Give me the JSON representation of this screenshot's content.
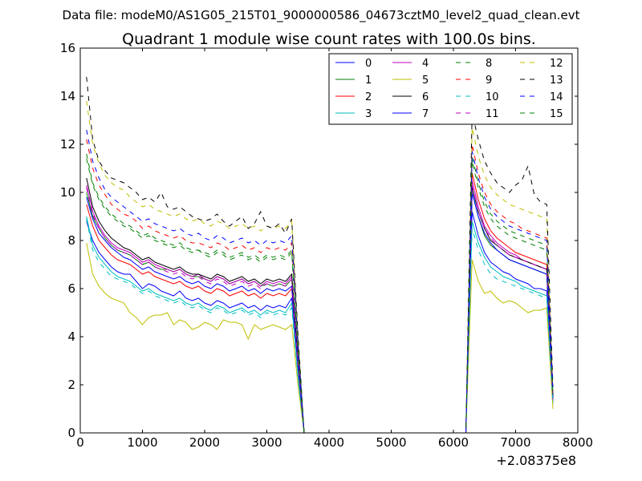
{
  "header": {
    "data_file": "Data file: modeM0/AS1G05_215T01_9000000586_04673cztM0_level2_quad_clean.evt"
  },
  "chart_data": {
    "type": "line",
    "title": "Quadrant 1 module wise count rates with 100.0s bins.",
    "xlabel": "",
    "ylabel": "",
    "x_offset_label": "+2.08375e8",
    "xlim": [
      0,
      8000
    ],
    "ylim": [
      0,
      16
    ],
    "x_ticks": [
      0,
      1000,
      2000,
      3000,
      4000,
      5000,
      6000,
      7000,
      8000
    ],
    "y_ticks": [
      0,
      2,
      4,
      6,
      8,
      10,
      12,
      14,
      16
    ],
    "grid": false,
    "legend_position": "top-right",
    "x": [
      100,
      200,
      300,
      400,
      500,
      600,
      700,
      800,
      900,
      1000,
      1100,
      1200,
      1300,
      1400,
      1500,
      1600,
      1700,
      1800,
      1900,
      2000,
      2100,
      2200,
      2300,
      2400,
      2500,
      2600,
      2700,
      2800,
      2900,
      3000,
      3100,
      3200,
      3300,
      3400,
      3500,
      3600,
      6200,
      6300,
      6400,
      6500,
      6600,
      6700,
      6800,
      6900,
      7000,
      7100,
      7200,
      7300,
      7400,
      7500,
      7600
    ],
    "series": [
      {
        "name": "0",
        "color": "#0000ff",
        "dashed": false,
        "values": [
          8.8,
          8.0,
          7.5,
          7.2,
          6.9,
          6.7,
          6.6,
          6.6,
          6.3,
          6.0,
          6.2,
          6.1,
          5.9,
          5.8,
          5.7,
          5.9,
          5.6,
          5.5,
          5.6,
          5.4,
          5.3,
          5.5,
          5.4,
          5.2,
          5.3,
          5.4,
          5.2,
          5.3,
          5.1,
          5.3,
          5.2,
          5.3,
          5.2,
          5.6,
          2.5,
          0,
          0,
          9.2,
          8.2,
          7.5,
          7.1,
          6.9,
          6.7,
          6.6,
          6.4,
          6.3,
          6.2,
          6.0,
          6.0,
          5.9,
          1.3
        ]
      },
      {
        "name": "1",
        "color": "#008000",
        "dashed": false,
        "values": [
          10.0,
          9.0,
          8.5,
          8.1,
          7.8,
          7.6,
          7.5,
          7.4,
          7.2,
          7.0,
          7.1,
          6.9,
          6.8,
          6.8,
          6.7,
          6.8,
          6.6,
          6.5,
          6.5,
          6.4,
          6.3,
          6.5,
          6.4,
          6.2,
          6.3,
          6.4,
          6.2,
          6.3,
          6.1,
          6.2,
          6.1,
          6.2,
          6.1,
          6.4,
          3.0,
          0,
          0,
          10.0,
          9.0,
          8.2,
          7.8,
          7.6,
          7.4,
          7.2,
          7.1,
          7.0,
          6.9,
          6.8,
          6.7,
          6.6,
          1.4
        ]
      },
      {
        "name": "2",
        "color": "#ff0000",
        "dashed": false,
        "values": [
          9.5,
          8.6,
          8.0,
          7.7,
          7.4,
          7.2,
          7.1,
          7.0,
          6.8,
          6.6,
          6.7,
          6.5,
          6.4,
          6.3,
          6.2,
          6.3,
          6.1,
          6.0,
          6.1,
          5.9,
          5.8,
          6.0,
          5.9,
          5.7,
          5.8,
          5.9,
          5.7,
          5.8,
          5.6,
          5.8,
          5.7,
          5.8,
          5.7,
          6.0,
          2.8,
          0,
          0,
          10.8,
          9.7,
          8.9,
          8.4,
          8.1,
          7.9,
          7.7,
          7.5,
          7.4,
          7.3,
          7.2,
          7.1,
          7.0,
          1.4
        ]
      },
      {
        "name": "3",
        "color": "#00bfbf",
        "dashed": false,
        "values": [
          9.0,
          7.8,
          7.3,
          7.0,
          6.7,
          6.5,
          6.4,
          6.3,
          6.1,
          5.9,
          6.0,
          5.8,
          5.7,
          5.6,
          5.5,
          5.6,
          5.4,
          5.3,
          5.4,
          5.2,
          5.1,
          5.3,
          5.2,
          5.0,
          5.1,
          5.2,
          5.0,
          5.1,
          4.9,
          5.1,
          5.0,
          5.1,
          5.0,
          5.4,
          2.4,
          0,
          0,
          8.8,
          7.9,
          7.3,
          6.9,
          6.7,
          6.5,
          6.4,
          6.3,
          6.1,
          6.0,
          5.9,
          5.8,
          5.7,
          1.2
        ]
      },
      {
        "name": "4",
        "color": "#bf00bf",
        "dashed": false,
        "values": [
          10.3,
          9.2,
          8.6,
          8.2,
          7.9,
          7.7,
          7.6,
          7.5,
          7.3,
          7.1,
          7.2,
          7.0,
          6.9,
          6.8,
          6.7,
          6.8,
          6.6,
          6.5,
          6.6,
          6.4,
          6.3,
          6.5,
          6.4,
          6.2,
          6.3,
          6.4,
          6.2,
          6.3,
          6.1,
          6.3,
          6.2,
          6.3,
          6.2,
          6.5,
          3.0,
          0,
          0,
          10.5,
          9.4,
          8.6,
          8.2,
          7.9,
          7.7,
          7.5,
          7.4,
          7.2,
          7.1,
          7.0,
          6.9,
          6.8,
          1.4
        ]
      },
      {
        "name": "5",
        "color": "#bfbf00",
        "dashed": false,
        "values": [
          7.9,
          6.6,
          6.1,
          5.8,
          5.6,
          5.5,
          5.4,
          5.0,
          4.8,
          4.5,
          4.8,
          4.9,
          4.9,
          5.0,
          4.5,
          4.7,
          4.6,
          4.3,
          4.4,
          4.6,
          4.5,
          4.3,
          4.7,
          4.6,
          4.6,
          4.5,
          3.9,
          4.5,
          4.3,
          4.4,
          4.5,
          4.4,
          4.3,
          4.5,
          2.0,
          0,
          0,
          7.2,
          6.3,
          5.8,
          5.9,
          5.6,
          5.4,
          5.5,
          5.4,
          5.2,
          5.0,
          5.1,
          5.1,
          5.2,
          1.0
        ]
      },
      {
        "name": "6",
        "color": "#000000",
        "dashed": false,
        "values": [
          10.6,
          9.4,
          8.8,
          8.4,
          8.1,
          7.9,
          7.7,
          7.6,
          7.4,
          7.2,
          7.3,
          7.1,
          7.0,
          6.9,
          6.8,
          6.9,
          6.7,
          6.6,
          6.6,
          6.5,
          6.4,
          6.6,
          6.5,
          6.3,
          6.4,
          6.5,
          6.3,
          6.4,
          6.2,
          6.4,
          6.3,
          6.4,
          6.3,
          6.6,
          3.0,
          0,
          0,
          10.2,
          9.2,
          8.5,
          8.0,
          7.8,
          7.6,
          7.4,
          7.3,
          7.2,
          7.1,
          7.0,
          6.9,
          6.8,
          1.5
        ]
      },
      {
        "name": "7",
        "color": "#0000ff",
        "dashed": false,
        "values": [
          9.8,
          8.9,
          8.3,
          8.0,
          7.7,
          7.5,
          7.3,
          7.2,
          7.0,
          6.8,
          6.9,
          6.7,
          6.6,
          6.5,
          6.4,
          6.5,
          6.3,
          6.2,
          6.3,
          6.1,
          6.0,
          6.2,
          6.1,
          5.9,
          6.0,
          6.1,
          5.9,
          6.0,
          5.8,
          6.0,
          5.9,
          6.0,
          5.9,
          6.1,
          2.9,
          0,
          0,
          10.0,
          9.0,
          8.3,
          7.9,
          7.6,
          7.4,
          7.2,
          7.1,
          7.0,
          6.9,
          6.8,
          6.7,
          6.6,
          1.4
        ]
      },
      {
        "name": "8",
        "color": "#008000",
        "dashed": true,
        "values": [
          11.4,
          10.3,
          9.7,
          9.3,
          9.0,
          8.8,
          8.6,
          8.5,
          8.3,
          8.1,
          8.2,
          8.0,
          7.9,
          7.8,
          7.7,
          7.8,
          7.6,
          7.5,
          7.6,
          7.4,
          7.3,
          7.5,
          7.4,
          7.2,
          7.3,
          7.4,
          7.2,
          7.3,
          7.1,
          7.3,
          7.2,
          7.3,
          7.2,
          7.5,
          3.4,
          0,
          0,
          11.5,
          10.4,
          9.6,
          9.1,
          8.8,
          8.6,
          8.4,
          8.3,
          8.2,
          8.1,
          8.0,
          7.9,
          7.8,
          1.6
        ]
      },
      {
        "name": "9",
        "color": "#ff0000",
        "dashed": true,
        "values": [
          12.2,
          11.0,
          10.3,
          9.9,
          9.5,
          9.3,
          9.1,
          9.0,
          8.8,
          8.5,
          8.6,
          8.4,
          8.3,
          8.2,
          8.1,
          8.2,
          8.0,
          7.9,
          7.9,
          7.8,
          7.7,
          7.9,
          7.8,
          7.6,
          7.7,
          7.8,
          7.6,
          7.7,
          7.5,
          7.7,
          7.6,
          7.7,
          7.6,
          7.9,
          3.6,
          0,
          0,
          12.0,
          10.8,
          10.0,
          9.5,
          9.2,
          9.0,
          8.8,
          8.7,
          8.5,
          8.4,
          8.3,
          8.2,
          8.1,
          1.7
        ]
      },
      {
        "name": "10",
        "color": "#00bfbf",
        "dashed": true,
        "values": [
          8.9,
          7.6,
          7.1,
          6.8,
          6.5,
          6.4,
          6.3,
          6.2,
          6.0,
          5.8,
          5.9,
          5.7,
          5.6,
          5.5,
          5.4,
          5.5,
          5.3,
          5.2,
          5.3,
          5.1,
          5.0,
          5.2,
          5.1,
          4.9,
          5.0,
          5.1,
          4.9,
          5.0,
          4.8,
          5.0,
          4.9,
          5.0,
          4.9,
          5.2,
          2.3,
          0,
          0,
          8.5,
          7.6,
          7.0,
          6.6,
          6.4,
          6.3,
          6.2,
          6.1,
          6.0,
          5.9,
          5.8,
          5.7,
          5.6,
          1.2
        ]
      },
      {
        "name": "11",
        "color": "#bf00bf",
        "dashed": true,
        "values": [
          10.2,
          9.1,
          8.5,
          8.1,
          7.8,
          7.6,
          7.5,
          7.4,
          7.2,
          7.0,
          7.1,
          6.9,
          6.8,
          6.7,
          6.6,
          6.7,
          6.5,
          6.4,
          6.5,
          6.3,
          6.2,
          6.4,
          6.3,
          6.1,
          6.2,
          6.3,
          6.1,
          6.2,
          6.0,
          6.2,
          6.1,
          6.2,
          6.1,
          6.4,
          2.9,
          0,
          0,
          10.3,
          9.2,
          8.5,
          8.1,
          7.8,
          7.6,
          7.4,
          7.3,
          7.2,
          7.1,
          7.0,
          6.9,
          6.8,
          1.4
        ]
      },
      {
        "name": "12",
        "color": "#bfbf00",
        "dashed": true,
        "values": [
          13.8,
          12.0,
          11.2,
          10.7,
          10.4,
          10.2,
          10.1,
          9.8,
          9.6,
          9.4,
          9.5,
          9.3,
          9.2,
          9.1,
          9.0,
          9.1,
          8.9,
          8.8,
          8.9,
          8.7,
          8.6,
          8.8,
          8.7,
          8.5,
          8.6,
          8.7,
          8.5,
          8.6,
          8.4,
          8.6,
          8.5,
          8.6,
          8.5,
          8.8,
          4.0,
          0,
          0,
          12.7,
          11.5,
          10.7,
          10.2,
          9.9,
          9.7,
          9.5,
          9.4,
          9.3,
          9.2,
          9.1,
          9.0,
          8.9,
          1.8
        ]
      },
      {
        "name": "13",
        "color": "#000000",
        "dashed": true,
        "values": [
          14.8,
          12.2,
          11.3,
          10.9,
          10.6,
          10.5,
          10.4,
          10.2,
          10.0,
          9.7,
          9.8,
          9.6,
          10.0,
          9.4,
          9.3,
          9.4,
          9.2,
          9.0,
          8.9,
          8.8,
          8.9,
          9.1,
          8.8,
          8.6,
          8.8,
          9.0,
          8.5,
          8.7,
          9.2,
          8.6,
          8.5,
          8.7,
          8.3,
          8.9,
          4.1,
          0,
          0,
          13.3,
          12.2,
          11.3,
          10.8,
          10.4,
          10.2,
          10.0,
          10.3,
          10.5,
          11.1,
          9.9,
          9.6,
          9.5,
          1.9
        ]
      },
      {
        "name": "14",
        "color": "#0000ff",
        "dashed": true,
        "values": [
          12.6,
          11.3,
          10.6,
          10.1,
          9.8,
          9.6,
          9.4,
          9.2,
          9.0,
          8.8,
          8.9,
          8.7,
          8.6,
          8.5,
          8.4,
          8.5,
          8.3,
          8.2,
          8.3,
          8.1,
          8.0,
          8.2,
          8.1,
          7.9,
          8.0,
          8.1,
          7.9,
          8.0,
          7.8,
          8.0,
          7.9,
          8.0,
          7.9,
          8.2,
          3.7,
          0,
          0,
          11.7,
          10.6,
          9.8,
          9.3,
          9.0,
          8.8,
          8.6,
          8.5,
          8.4,
          8.3,
          8.2,
          8.1,
          8.0,
          1.7
        ]
      },
      {
        "name": "15",
        "color": "#008000",
        "dashed": true,
        "values": [
          11.6,
          10.4,
          9.8,
          9.4,
          9.1,
          8.9,
          8.7,
          8.6,
          8.4,
          8.2,
          8.3,
          8.1,
          8.0,
          7.9,
          7.8,
          7.9,
          7.7,
          7.6,
          7.6,
          7.5,
          7.4,
          7.6,
          7.5,
          7.3,
          7.4,
          7.5,
          7.3,
          7.4,
          7.2,
          7.4,
          7.3,
          7.4,
          7.3,
          7.6,
          3.4,
          0,
          0,
          11.3,
          10.2,
          9.4,
          8.9,
          8.6,
          8.4,
          8.2,
          8.1,
          8.0,
          7.9,
          7.8,
          7.7,
          7.6,
          1.6
        ]
      }
    ]
  }
}
